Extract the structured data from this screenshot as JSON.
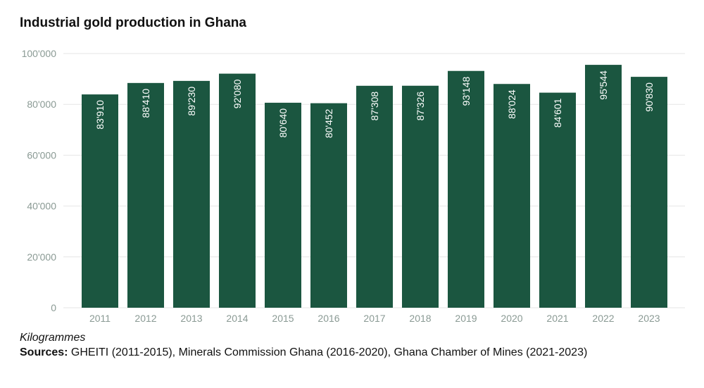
{
  "chart_data": {
    "type": "bar",
    "title": "Industrial gold production in Ghana",
    "categories": [
      "2011",
      "2012",
      "2013",
      "2014",
      "2015",
      "2016",
      "2017",
      "2018",
      "2019",
      "2020",
      "2021",
      "2022",
      "2023"
    ],
    "values": [
      83910,
      88410,
      89230,
      92080,
      80640,
      80452,
      87308,
      87326,
      93148,
      88024,
      84601,
      95544,
      90830
    ],
    "value_labels": [
      "83'910",
      "88'410",
      "89'230",
      "92'080",
      "80'640",
      "80'452",
      "87'308",
      "87'326",
      "93'148",
      "88'024",
      "84'601",
      "95'544",
      "90'830"
    ],
    "xlabel": "",
    "ylabel": "",
    "ylim": [
      0,
      100000
    ],
    "yticks": [
      0,
      20000,
      40000,
      60000,
      80000,
      100000
    ],
    "ytick_labels": [
      "0",
      "20'000",
      "40'000",
      "60'000",
      "80'000",
      "100'000"
    ],
    "grid": true,
    "legend": "none",
    "bar_color": "#1b5640",
    "unit_note": "Kilogrammes",
    "sources_label": "Sources:",
    "sources_text": " GHEITI (2011-2015), Minerals Commission Ghana (2016-2020), Ghana Chamber of Mines (2021-2023)"
  }
}
